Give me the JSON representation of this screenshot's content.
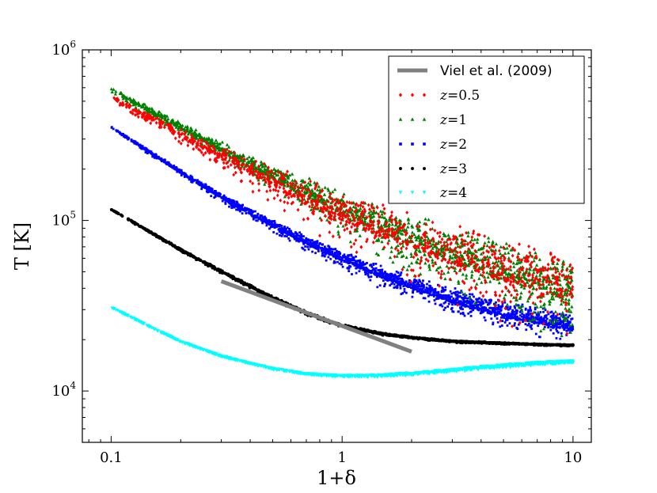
{
  "chart_data": {
    "type": "scatter",
    "title": "",
    "xlabel": "1+δ",
    "ylabel": "T [K]",
    "xscale": "log",
    "yscale": "log",
    "xlim": [
      0.075,
      12
    ],
    "ylim": [
      5000,
      1000000
    ],
    "xticks": [
      {
        "value": 0.1,
        "label": "0.1"
      },
      {
        "value": 1,
        "label": "1"
      },
      {
        "value": 10,
        "label": "10"
      }
    ],
    "yticks": [
      {
        "value": 10000,
        "base": "10",
        "exp": "4"
      },
      {
        "value": 100000,
        "base": "10",
        "exp": "5"
      },
      {
        "value": 1000000,
        "base": "10",
        "exp": "6"
      }
    ],
    "legend_position": "top-right",
    "reference_line": {
      "name": "Viel et al. (2009)",
      "color": "#808080",
      "x": [
        0.3,
        2.0
      ],
      "y": [
        44000,
        17000
      ]
    },
    "series": [
      {
        "name": "z=0.5",
        "label_var": "z",
        "label_val": "=0.5",
        "color": "#ff0000",
        "marker": "diamond",
        "x": [
          0.1,
          0.2,
          0.3,
          0.5,
          0.7,
          1.0,
          1.5,
          2.0,
          3.0,
          5.0,
          7.0,
          10.0
        ],
        "y": [
          520000,
          310000,
          230000,
          160000,
          125000,
          100000,
          80000,
          68000,
          55000,
          44000,
          39000,
          34000
        ],
        "scatter_dex": [
          0.02,
          0.05,
          0.08,
          0.12,
          0.15,
          0.18,
          0.2,
          0.22,
          0.25,
          0.27,
          0.28,
          0.3
        ],
        "upward_bias": 0.6
      },
      {
        "name": "z=1",
        "label_var": "z",
        "label_val": "=1",
        "color": "#008000",
        "marker": "triangle",
        "x": [
          0.1,
          0.2,
          0.3,
          0.5,
          0.7,
          1.0,
          1.5,
          2.0,
          3.0,
          5.0,
          7.0,
          10.0
        ],
        "y": [
          580000,
          345000,
          255000,
          175000,
          137000,
          108000,
          85000,
          72000,
          58000,
          45000,
          39000,
          33000
        ],
        "scatter_dex": [
          0.02,
          0.04,
          0.06,
          0.09,
          0.12,
          0.15,
          0.17,
          0.19,
          0.21,
          0.23,
          0.24,
          0.25
        ],
        "upward_bias": 0.55
      },
      {
        "name": "z=2",
        "label_var": "z",
        "label_val": "=2",
        "color": "#0000ff",
        "marker": "square",
        "x": [
          0.1,
          0.2,
          0.3,
          0.5,
          0.7,
          1.0,
          1.5,
          2.0,
          3.0,
          5.0,
          7.0,
          10.0
        ],
        "y": [
          350000,
          190000,
          135000,
          92000,
          73000,
          58000,
          46000,
          40000,
          33000,
          27000,
          25000,
          22500
        ],
        "scatter_dex": [
          0.01,
          0.02,
          0.03,
          0.04,
          0.05,
          0.06,
          0.07,
          0.08,
          0.09,
          0.1,
          0.1,
          0.1
        ],
        "upward_bias": 0.7
      },
      {
        "name": "z=3",
        "label_var": "z",
        "label_val": "=3",
        "color": "#000000",
        "marker": "circle",
        "x": [
          0.1,
          0.2,
          0.3,
          0.5,
          0.7,
          1.0,
          1.5,
          2.0,
          3.0,
          5.0,
          7.0,
          10.0
        ],
        "y": [
          116000,
          67000,
          50000,
          35000,
          28500,
          24000,
          21500,
          20500,
          19500,
          19000,
          18700,
          18500
        ],
        "scatter_dex": [
          0.004,
          0.008,
          0.01,
          0.012,
          0.012,
          0.01,
          0.008,
          0.006,
          0.006,
          0.005,
          0.005,
          0.005
        ],
        "upward_bias": 0.6
      },
      {
        "name": "z=4",
        "label_var": "z",
        "label_val": "=4",
        "color": "#00ffff",
        "marker": "triangle-down",
        "x": [
          0.1,
          0.15,
          0.2,
          0.3,
          0.5,
          0.7,
          1.0,
          1.5,
          2.0,
          3.0,
          5.0,
          7.0,
          10.0
        ],
        "y": [
          31000,
          23500,
          19500,
          16000,
          13500,
          12600,
          12200,
          12300,
          12600,
          13200,
          14000,
          14500,
          14800
        ],
        "scatter_dex": [
          0.004,
          0.004,
          0.004,
          0.005,
          0.006,
          0.007,
          0.008,
          0.009,
          0.01,
          0.012,
          0.012,
          0.012,
          0.01
        ],
        "upward_bias": 0.5
      }
    ]
  }
}
